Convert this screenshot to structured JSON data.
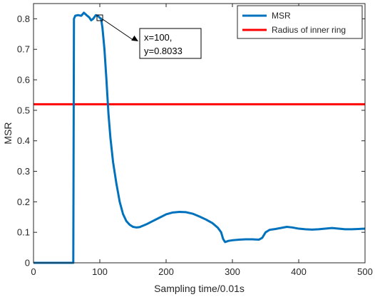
{
  "chart_data": {
    "type": "line",
    "title": "",
    "xlabel": "Sampling time/0.01s",
    "ylabel": "MSR",
    "xlim": [
      0,
      500
    ],
    "ylim": [
      0,
      0.85
    ],
    "x_ticks": [
      0,
      100,
      200,
      300,
      400,
      500
    ],
    "y_ticks": [
      0,
      0.1,
      0.2,
      0.3,
      0.4,
      0.5,
      0.6,
      0.7,
      0.8
    ],
    "x_tick_labels": [
      "0",
      "100",
      "200",
      "300",
      "400",
      "500"
    ],
    "y_tick_labels": [
      "0",
      "0.1",
      "0.2",
      "0.3",
      "0.4",
      "0.5",
      "0.6",
      "0.7",
      "0.8"
    ],
    "grid": false,
    "legend_position": "top-right",
    "series": [
      {
        "name": "MSR",
        "color": "#0072BD",
        "points": [
          [
            0,
            0
          ],
          [
            60,
            0
          ],
          [
            61,
            0.8
          ],
          [
            63,
            0.81
          ],
          [
            67,
            0.812
          ],
          [
            72,
            0.81
          ],
          [
            76,
            0.82
          ],
          [
            80,
            0.812
          ],
          [
            84,
            0.805
          ],
          [
            87,
            0.795
          ],
          [
            90,
            0.8
          ],
          [
            94,
            0.812
          ],
          [
            97,
            0.81
          ],
          [
            100,
            0.8033
          ],
          [
            102,
            0.8
          ],
          [
            104,
            0.77
          ],
          [
            107,
            0.7
          ],
          [
            110,
            0.6
          ],
          [
            113,
            0.49
          ],
          [
            116,
            0.41
          ],
          [
            120,
            0.33
          ],
          [
            125,
            0.26
          ],
          [
            130,
            0.2
          ],
          [
            135,
            0.16
          ],
          [
            140,
            0.137
          ],
          [
            145,
            0.125
          ],
          [
            150,
            0.118
          ],
          [
            155,
            0.116
          ],
          [
            160,
            0.117
          ],
          [
            170,
            0.126
          ],
          [
            180,
            0.137
          ],
          [
            190,
            0.148
          ],
          [
            200,
            0.159
          ],
          [
            210,
            0.165
          ],
          [
            220,
            0.167
          ],
          [
            230,
            0.166
          ],
          [
            240,
            0.161
          ],
          [
            250,
            0.152
          ],
          [
            260,
            0.142
          ],
          [
            270,
            0.13
          ],
          [
            278,
            0.115
          ],
          [
            283,
            0.1
          ],
          [
            286,
            0.078
          ],
          [
            289,
            0.068
          ],
          [
            294,
            0.072
          ],
          [
            300,
            0.074
          ],
          [
            310,
            0.076
          ],
          [
            320,
            0.077
          ],
          [
            330,
            0.077
          ],
          [
            340,
            0.076
          ],
          [
            345,
            0.082
          ],
          [
            350,
            0.1
          ],
          [
            356,
            0.108
          ],
          [
            365,
            0.111
          ],
          [
            375,
            0.115
          ],
          [
            382,
            0.118
          ],
          [
            390,
            0.116
          ],
          [
            400,
            0.112
          ],
          [
            410,
            0.11
          ],
          [
            420,
            0.109
          ],
          [
            430,
            0.11
          ],
          [
            440,
            0.112
          ],
          [
            450,
            0.114
          ],
          [
            460,
            0.112
          ],
          [
            470,
            0.11
          ],
          [
            480,
            0.11
          ],
          [
            490,
            0.111
          ],
          [
            500,
            0.112
          ]
        ]
      },
      {
        "name": "Radius of inner ring",
        "color": "#FF0000",
        "points": [
          [
            0,
            0.52
          ],
          [
            500,
            0.52
          ]
        ]
      }
    ],
    "annotation": {
      "line1": "x=100,",
      "line2": "y=0.8033",
      "marker_point": [
        100,
        0.8033
      ]
    }
  }
}
